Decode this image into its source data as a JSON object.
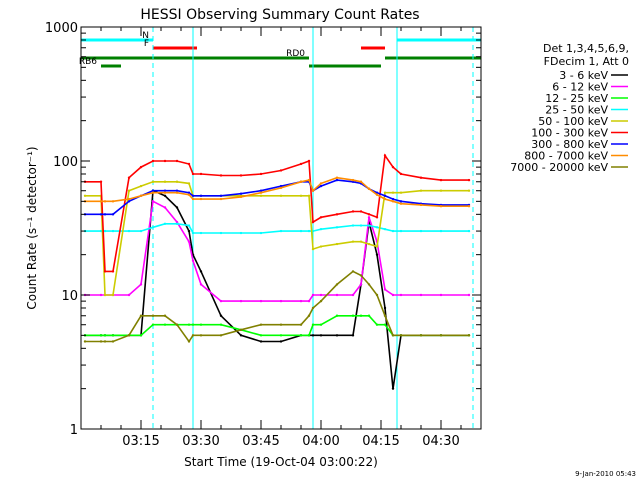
{
  "chart_data": {
    "type": "line",
    "title": "HESSI Observing Summary Count Rates",
    "xlabel": "Start Time (19-Oct-04 03:00:22)",
    "ylabel": "Count Rate (s⁻¹ detector⁻¹)",
    "y_scale": "log",
    "xlim": [
      "03:00",
      "04:40"
    ],
    "ylim": [
      1,
      1000
    ],
    "x_ticks": [
      "03:15",
      "03:30",
      "03:45",
      "04:00",
      "04:15",
      "04:30"
    ],
    "y_ticks": [
      "1",
      "10",
      "100",
      "1000"
    ],
    "legend_header": [
      "Det 1,3,4,5,6,9,",
      "FDecim 1, Att 0"
    ],
    "legend_position": "right",
    "footer_date": "9-Jan-2010 05:43",
    "flags": [
      {
        "label": "N",
        "color": "#00ffff",
        "segments": [
          [
            "03:00",
            "03:18"
          ],
          [
            "04:19",
            "04:40"
          ]
        ]
      },
      {
        "label": "F",
        "color": "#ff0000",
        "segments": [
          [
            "03:18",
            "03:29"
          ],
          [
            "04:10",
            "04:16"
          ]
        ]
      },
      {
        "label": "RD0",
        "color": "#008000",
        "segments": [
          [
            "03:00",
            "03:57"
          ],
          [
            "04:16",
            "04:40"
          ]
        ]
      },
      {
        "label": "RB6",
        "color": "#008000",
        "segments": [
          [
            "03:05",
            "03:10"
          ],
          [
            "03:57",
            "04:15"
          ]
        ]
      }
    ],
    "vertical_markers": [
      {
        "time": "03:00",
        "style": "solid"
      },
      {
        "time": "03:18",
        "style": "dashed"
      },
      {
        "time": "03:28",
        "style": "solid"
      },
      {
        "time": "03:58",
        "style": "solid"
      },
      {
        "time": "04:19",
        "style": "solid"
      },
      {
        "time": "04:38",
        "style": "dashed"
      }
    ],
    "x": [
      "03:01",
      "03:05",
      "03:06",
      "03:08",
      "03:12",
      "03:15",
      "03:18",
      "03:21",
      "03:24",
      "03:27",
      "03:28",
      "03:30",
      "03:35",
      "03:40",
      "03:45",
      "03:50",
      "03:55",
      "03:57",
      "03:58",
      "04:00",
      "04:04",
      "04:08",
      "04:10",
      "04:12",
      "04:14",
      "04:16",
      "04:18",
      "04:20",
      "04:25",
      "04:30",
      "04:37"
    ],
    "series": [
      {
        "name": "3 - 6 keV",
        "color": "#000000",
        "values": [
          5,
          5,
          5,
          5,
          5,
          5,
          60,
          55,
          45,
          30,
          20,
          15,
          7,
          5,
          4.5,
          4.5,
          5,
          5,
          5,
          5,
          5,
          5,
          12,
          35,
          20,
          8,
          2,
          5,
          5,
          5,
          5
        ]
      },
      {
        "name": "6 - 12 keV",
        "color": "#ff00ff",
        "values": [
          10,
          10,
          10,
          10,
          10,
          12,
          50,
          45,
          35,
          25,
          18,
          12,
          9,
          9,
          9,
          9,
          9,
          9,
          10,
          10,
          10,
          10,
          12,
          38,
          25,
          11,
          10,
          10,
          10,
          10,
          10
        ]
      },
      {
        "name": "12 - 25 keV",
        "color": "#00ff00",
        "values": [
          5,
          5,
          5,
          5,
          5,
          5,
          6,
          6,
          6,
          6,
          6,
          6,
          6,
          5.5,
          5,
          5,
          5,
          5,
          6,
          6,
          7,
          7,
          7,
          7,
          6,
          6,
          5,
          5,
          5,
          5,
          5
        ]
      },
      {
        "name": "25 - 50 keV",
        "color": "#00ffff",
        "values": [
          30,
          30,
          30,
          30,
          30,
          30,
          32,
          34,
          34,
          33,
          29,
          29,
          29,
          29,
          29,
          30,
          30,
          30,
          30,
          31,
          32,
          33,
          33,
          33,
          32,
          31,
          30,
          30,
          30,
          30,
          30
        ]
      },
      {
        "name": "50 - 100 keV",
        "color": "#cccc00",
        "values": [
          55,
          55,
          10,
          10,
          60,
          65,
          70,
          70,
          70,
          68,
          55,
          55,
          55,
          55,
          55,
          55,
          55,
          55,
          22,
          23,
          24,
          25,
          25,
          24,
          23,
          58,
          58,
          58,
          60,
          60,
          60
        ]
      },
      {
        "name": "100 - 300 keV",
        "color": "#ff0000",
        "values": [
          70,
          70,
          15,
          15,
          75,
          90,
          100,
          100,
          100,
          95,
          80,
          80,
          78,
          78,
          80,
          85,
          95,
          100,
          35,
          38,
          40,
          42,
          42,
          40,
          38,
          110,
          90,
          80,
          75,
          72,
          72
        ]
      },
      {
        "name": "300 - 800 keV",
        "color": "#0000ff",
        "values": [
          40,
          40,
          40,
          40,
          50,
          55,
          60,
          60,
          60,
          58,
          55,
          55,
          55,
          57,
          60,
          65,
          70,
          70,
          60,
          65,
          72,
          70,
          68,
          62,
          58,
          55,
          52,
          50,
          48,
          47,
          47
        ]
      },
      {
        "name": "800 - 7000 keV",
        "color": "#ff8c00",
        "values": [
          50,
          50,
          50,
          50,
          52,
          55,
          58,
          58,
          58,
          56,
          52,
          52,
          52,
          54,
          58,
          63,
          70,
          72,
          60,
          68,
          75,
          72,
          70,
          62,
          56,
          52,
          50,
          48,
          47,
          46,
          46
        ]
      },
      {
        "name": "7000 - 20000 keV",
        "color": "#808000",
        "values": [
          4.5,
          4.5,
          4.5,
          4.5,
          5,
          7,
          7,
          7,
          6,
          4.5,
          5,
          5,
          5,
          5.5,
          6,
          6,
          6,
          7,
          8,
          9,
          12,
          15,
          14,
          12,
          10,
          7,
          5,
          5,
          5,
          5,
          5
        ]
      }
    ]
  }
}
